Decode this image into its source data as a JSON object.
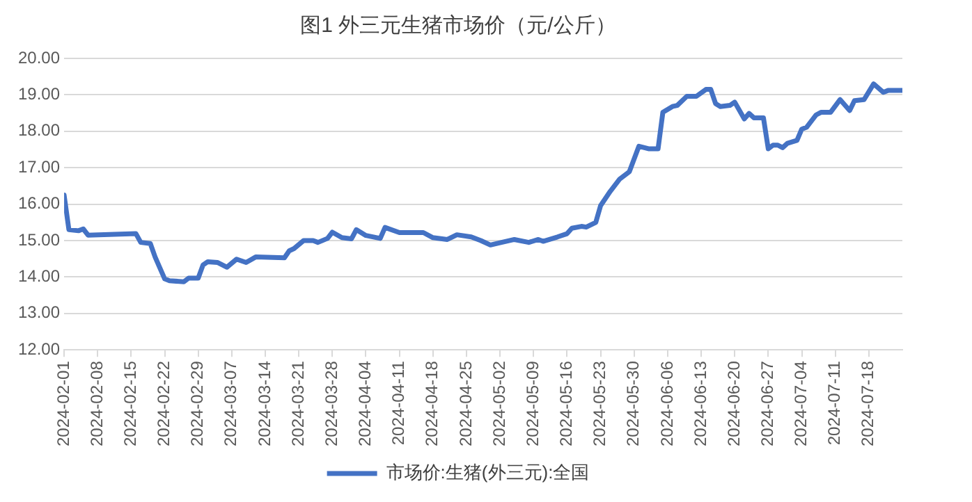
{
  "chart_data": {
    "type": "line",
    "title": "图1 外三元生猪市场价（元/公斤）",
    "x": [
      "2024-02-01",
      "2024-02-02",
      "2024-02-04",
      "2024-02-05",
      "2024-02-06",
      "2024-02-16",
      "2024-02-17",
      "2024-02-19",
      "2024-02-20",
      "2024-02-21",
      "2024-02-22",
      "2024-02-23",
      "2024-02-26",
      "2024-02-27",
      "2024-02-29",
      "2024-03-01",
      "2024-03-02",
      "2024-03-04",
      "2024-03-06",
      "2024-03-08",
      "2024-03-10",
      "2024-03-12",
      "2024-03-18",
      "2024-03-19",
      "2024-03-20",
      "2024-03-22",
      "2024-03-24",
      "2024-03-25",
      "2024-03-27",
      "2024-03-28",
      "2024-03-30",
      "2024-04-01",
      "2024-04-02",
      "2024-04-04",
      "2024-04-07",
      "2024-04-08",
      "2024-04-11",
      "2024-04-16",
      "2024-04-18",
      "2024-04-21",
      "2024-04-23",
      "2024-04-26",
      "2024-04-28",
      "2024-04-30",
      "2024-05-02",
      "2024-05-05",
      "2024-05-08",
      "2024-05-10",
      "2024-05-11",
      "2024-05-14",
      "2024-05-16",
      "2024-05-17",
      "2024-05-19",
      "2024-05-20",
      "2024-05-22",
      "2024-05-23",
      "2024-05-25",
      "2024-05-27",
      "2024-05-29",
      "2024-05-31",
      "2024-06-02",
      "2024-06-04",
      "2024-06-05",
      "2024-06-07",
      "2024-06-08",
      "2024-06-10",
      "2024-06-12",
      "2024-06-14",
      "2024-06-15",
      "2024-06-16",
      "2024-06-17",
      "2024-06-19",
      "2024-06-20",
      "2024-06-22",
      "2024-06-23",
      "2024-06-24",
      "2024-06-26",
      "2024-06-27",
      "2024-06-28",
      "2024-06-29",
      "2024-06-30",
      "2024-07-01",
      "2024-07-03",
      "2024-07-04",
      "2024-07-05",
      "2024-07-07",
      "2024-07-08",
      "2024-07-10",
      "2024-07-12",
      "2024-07-14",
      "2024-07-15",
      "2024-07-17",
      "2024-07-19",
      "2024-07-21",
      "2024-07-22",
      "2024-07-25"
    ],
    "series": [
      {
        "name": "市场价:生猪(外三元):全国",
        "color": "#4472c4",
        "values": [
          16.25,
          15.3,
          15.27,
          15.32,
          15.15,
          15.19,
          14.95,
          14.92,
          14.55,
          14.25,
          13.95,
          13.9,
          13.87,
          13.97,
          13.97,
          14.33,
          14.42,
          14.4,
          14.27,
          14.49,
          14.4,
          14.55,
          14.53,
          14.72,
          14.78,
          15.0,
          15.0,
          14.95,
          15.06,
          15.23,
          15.08,
          15.05,
          15.3,
          15.14,
          15.06,
          15.36,
          15.22,
          15.22,
          15.08,
          15.03,
          15.16,
          15.1,
          15.0,
          14.88,
          14.94,
          15.03,
          14.95,
          15.03,
          14.98,
          15.1,
          15.19,
          15.34,
          15.39,
          15.37,
          15.5,
          15.96,
          16.35,
          16.69,
          16.89,
          17.59,
          17.52,
          17.52,
          18.52,
          18.68,
          18.71,
          18.96,
          18.96,
          19.15,
          19.15,
          18.76,
          18.68,
          18.71,
          18.8,
          18.34,
          18.49,
          18.37,
          18.37,
          17.52,
          17.62,
          17.62,
          17.55,
          17.67,
          17.75,
          18.06,
          18.11,
          18.45,
          18.52,
          18.52,
          18.87,
          18.57,
          18.84,
          18.87,
          19.3,
          19.07,
          19.12,
          19.12
        ]
      }
    ],
    "xlim": [
      "2024-02-01",
      "2024-07-25"
    ],
    "xticks": [
      "2024-02-01",
      "2024-02-08",
      "2024-02-15",
      "2024-02-22",
      "2024-02-29",
      "2024-03-07",
      "2024-03-14",
      "2024-03-21",
      "2024-03-28",
      "2024-04-04",
      "2024-04-11",
      "2024-04-18",
      "2024-04-25",
      "2024-05-02",
      "2024-05-09",
      "2024-05-16",
      "2024-05-23",
      "2024-05-30",
      "2024-06-06",
      "2024-06-13",
      "2024-06-20",
      "2024-06-27",
      "2024-07-04",
      "2024-07-11",
      "2024-07-18"
    ],
    "ylim": [
      12,
      20
    ],
    "yticks": [
      {
        "value": 12,
        "label": "12.00"
      },
      {
        "value": 13,
        "label": "13.00"
      },
      {
        "value": 14,
        "label": "14.00"
      },
      {
        "value": 15,
        "label": "15.00"
      },
      {
        "value": 16,
        "label": "16.00"
      },
      {
        "value": 17,
        "label": "17.00"
      },
      {
        "value": 18,
        "label": "18.00"
      },
      {
        "value": 19,
        "label": "19.00"
      },
      {
        "value": 20,
        "label": "20.00"
      }
    ],
    "grid": "y",
    "legend": "bottom",
    "marker": "none",
    "line_style": "solid"
  }
}
